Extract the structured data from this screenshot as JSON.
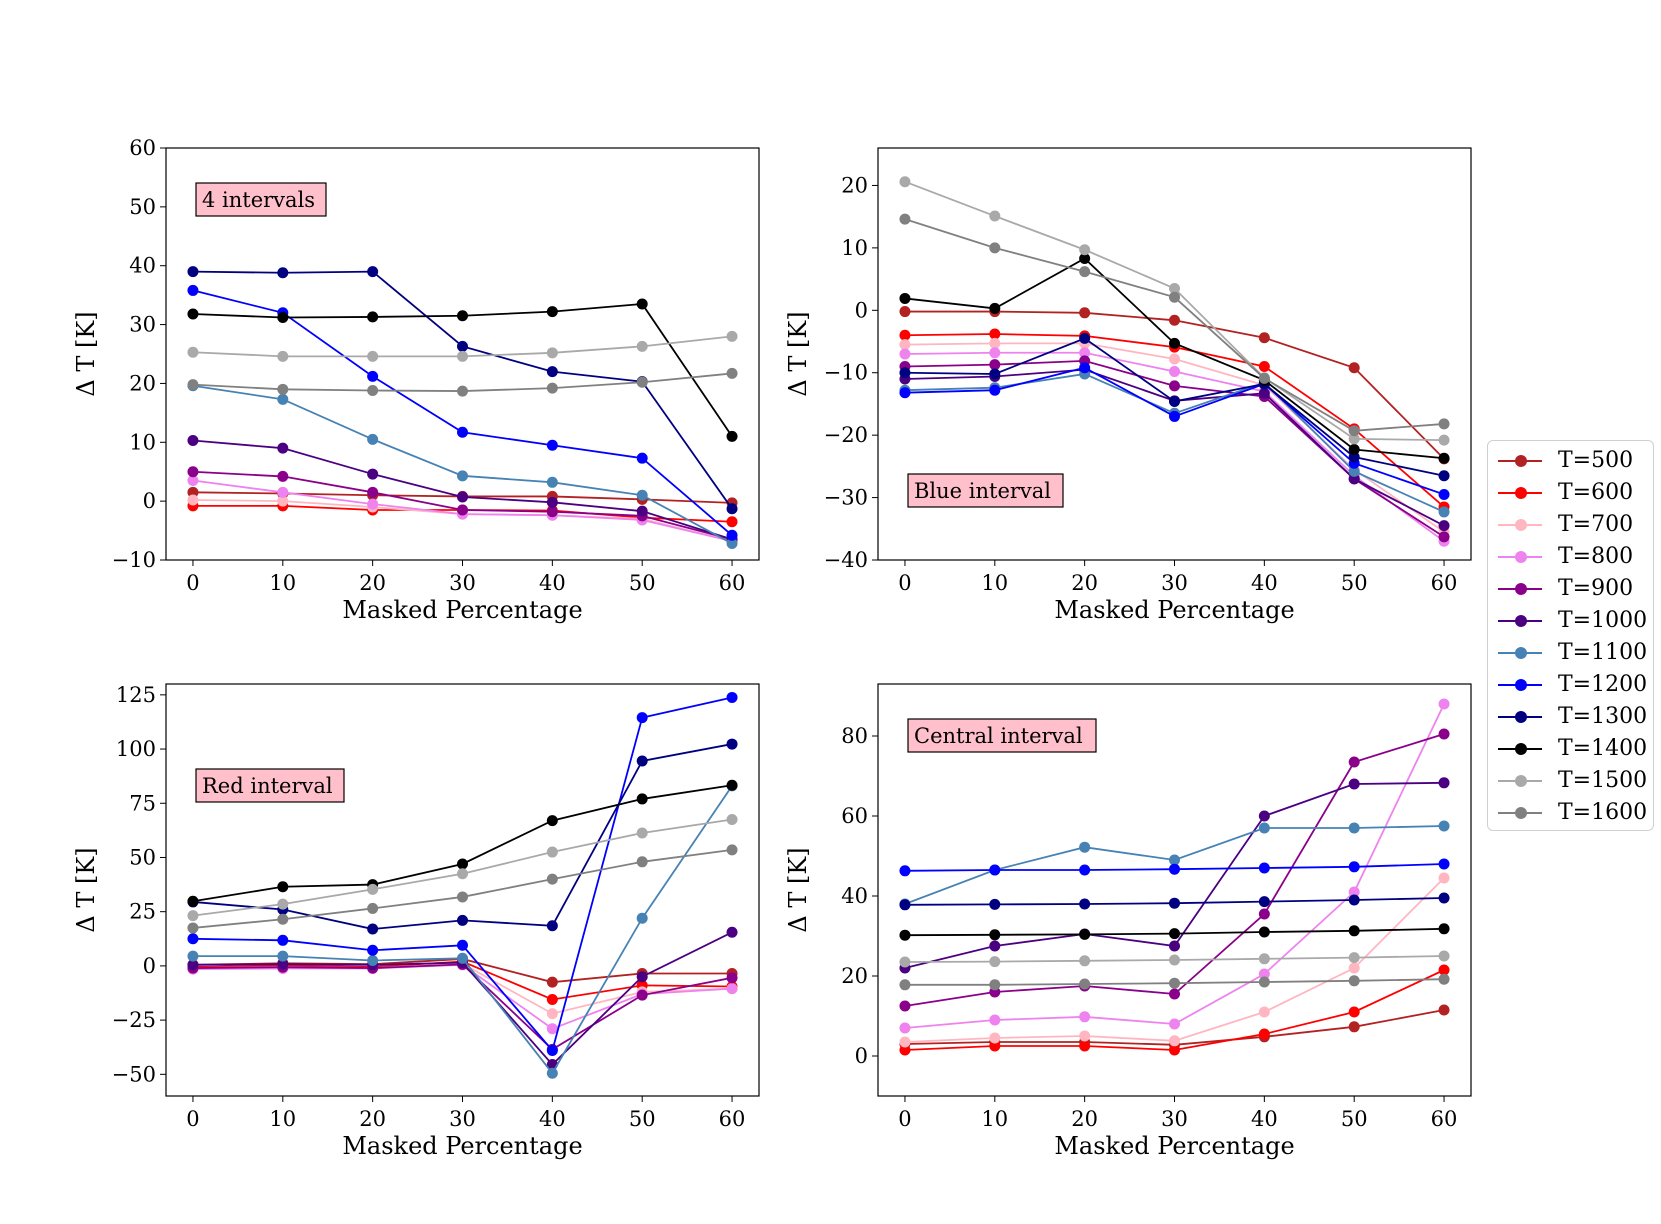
{
  "series_meta": [
    {
      "name": "T=500",
      "color": "#b22222"
    },
    {
      "name": "T=600",
      "color": "#ff0000"
    },
    {
      "name": "T=700",
      "color": "#ffb6c1"
    },
    {
      "name": "T=800",
      "color": "#ee82ee"
    },
    {
      "name": "T=900",
      "color": "#8b008b"
    },
    {
      "name": "T=1000",
      "color": "#4b0082"
    },
    {
      "name": "T=1100",
      "color": "#4682b4"
    },
    {
      "name": "T=1200",
      "color": "#0000ff"
    },
    {
      "name": "T=1300",
      "color": "#000080"
    },
    {
      "name": "T=1400",
      "color": "#000000"
    },
    {
      "name": "T=1500",
      "color": "#a9a9a9"
    },
    {
      "name": "T=1600",
      "color": "#808080"
    }
  ],
  "annotation_bg": "#ffc0cb",
  "chart_data": [
    {
      "type": "line",
      "title": "4 intervals",
      "xlabel": "Masked Percentage",
      "ylabel": "Δ T [K]",
      "x": [
        0,
        10,
        20,
        30,
        40,
        50,
        60
      ],
      "xticks": [
        0,
        10,
        20,
        30,
        40,
        50,
        60
      ],
      "xlim": [
        -3,
        63
      ],
      "ylim": [
        -10,
        60
      ],
      "yticks": [
        -10,
        0,
        10,
        20,
        30,
        40,
        50,
        60
      ],
      "ytick_labels": [
        "−10",
        "0",
        "10",
        "20",
        "30",
        "40",
        "50",
        "60"
      ],
      "series": [
        {
          "name": "T=500",
          "values": [
            1.5,
            1.3,
            1.0,
            0.8,
            0.8,
            0.3,
            -0.3
          ]
        },
        {
          "name": "T=600",
          "values": [
            -0.8,
            -0.8,
            -1.5,
            -1.5,
            -1.6,
            -2.8,
            -3.5
          ]
        },
        {
          "name": "T=700",
          "values": [
            0.2,
            0.0,
            -1.0,
            -2.2,
            -2.4,
            -3.0,
            -6.8
          ]
        },
        {
          "name": "T=800",
          "values": [
            3.5,
            1.5,
            -0.5,
            -2.2,
            -2.4,
            -3.2,
            -6.8
          ]
        },
        {
          "name": "T=900",
          "values": [
            5.0,
            4.2,
            1.5,
            -1.5,
            -1.8,
            -2.5,
            -6.5
          ]
        },
        {
          "name": "T=1000",
          "values": [
            10.3,
            9.0,
            4.6,
            0.7,
            -0.2,
            -1.7,
            -6.5
          ]
        },
        {
          "name": "T=1100",
          "values": [
            19.6,
            17.3,
            10.5,
            4.3,
            3.2,
            1.0,
            -7.2
          ]
        },
        {
          "name": "T=1200",
          "values": [
            35.8,
            32.0,
            21.2,
            11.7,
            9.5,
            7.3,
            -5.8
          ]
        },
        {
          "name": "T=1300",
          "values": [
            39.0,
            38.8,
            39.0,
            26.3,
            22.0,
            20.3,
            -1.3
          ]
        },
        {
          "name": "T=1400",
          "values": [
            31.8,
            31.2,
            31.3,
            31.5,
            32.2,
            33.5,
            11.0
          ]
        },
        {
          "name": "T=1500",
          "values": [
            25.3,
            24.6,
            24.6,
            24.6,
            25.2,
            26.3,
            28.0
          ]
        },
        {
          "name": "T=1600",
          "values": [
            19.8,
            19.0,
            18.8,
            18.7,
            19.2,
            20.2,
            21.7
          ]
        }
      ]
    },
    {
      "type": "line",
      "title": "Blue interval",
      "xlabel": "Masked Percentage",
      "ylabel": "Δ T [K]",
      "x": [
        0,
        10,
        20,
        30,
        40,
        50,
        60
      ],
      "xticks": [
        0,
        10,
        20,
        30,
        40,
        50,
        60
      ],
      "xlim": [
        -3,
        63
      ],
      "ylim": [
        -40,
        26
      ],
      "yticks": [
        -40,
        -30,
        -20,
        -10,
        0,
        10,
        20
      ],
      "ytick_labels": [
        "−40",
        "−30",
        "−20",
        "−10",
        "0",
        "10",
        "20"
      ],
      "series": [
        {
          "name": "T=500",
          "values": [
            -0.2,
            -0.2,
            -0.4,
            -1.6,
            -4.4,
            -9.2,
            -23.8
          ]
        },
        {
          "name": "T=600",
          "values": [
            -4.0,
            -3.8,
            -4.1,
            -5.9,
            -9.0,
            -19.0,
            -31.5
          ]
        },
        {
          "name": "T=700",
          "values": [
            -5.5,
            -5.3,
            -5.3,
            -7.8,
            -12.0,
            -25.5,
            -35.5
          ]
        },
        {
          "name": "T=800",
          "values": [
            -7.0,
            -6.8,
            -6.8,
            -9.8,
            -13.0,
            -26.5,
            -37.0
          ]
        },
        {
          "name": "T=900",
          "values": [
            -9.0,
            -8.7,
            -8.1,
            -12.1,
            -13.8,
            -27.0,
            -36.3
          ]
        },
        {
          "name": "T=1000",
          "values": [
            -11.0,
            -10.6,
            -9.5,
            -14.5,
            -13.3,
            -27.0,
            -34.5
          ]
        },
        {
          "name": "T=1100",
          "values": [
            -12.8,
            -12.4,
            -10.2,
            -16.5,
            -11.6,
            -25.8,
            -32.3
          ]
        },
        {
          "name": "T=1200",
          "values": [
            -13.2,
            -12.8,
            -9.2,
            -17.0,
            -11.8,
            -24.5,
            -29.5
          ]
        },
        {
          "name": "T=1300",
          "values": [
            -10.0,
            -10.2,
            -4.5,
            -14.6,
            -11.8,
            -23.5,
            -26.5
          ]
        },
        {
          "name": "T=1400",
          "values": [
            1.9,
            0.3,
            8.3,
            -5.3,
            -11.2,
            -22.3,
            -23.7
          ]
        },
        {
          "name": "T=1500",
          "values": [
            20.6,
            15.1,
            9.7,
            3.5,
            -10.8,
            -20.6,
            -20.8
          ]
        },
        {
          "name": "T=1600",
          "values": [
            14.6,
            10.0,
            6.2,
            2.1,
            -10.9,
            -19.3,
            -18.2
          ]
        }
      ]
    },
    {
      "type": "line",
      "title": "Red interval",
      "xlabel": "Masked Percentage",
      "ylabel": "Δ T [K]",
      "x": [
        0,
        10,
        20,
        30,
        40,
        50,
        60
      ],
      "xticks": [
        0,
        10,
        20,
        30,
        40,
        50,
        60
      ],
      "xlim": [
        -3,
        63
      ],
      "ylim": [
        -60,
        130
      ],
      "yticks": [
        -50,
        -25,
        0,
        25,
        50,
        75,
        100,
        125
      ],
      "ytick_labels": [
        "−50",
        "−25",
        "0",
        "25",
        "50",
        "75",
        "100",
        "125"
      ],
      "series": [
        {
          "name": "T=500",
          "values": [
            0.5,
            1.2,
            0.8,
            3.2,
            -7.5,
            -3.5,
            -3.5
          ]
        },
        {
          "name": "T=600",
          "values": [
            -0.5,
            0.2,
            -0.5,
            2.0,
            -15.5,
            -9.0,
            -9.5
          ]
        },
        {
          "name": "T=700",
          "values": [
            -1.0,
            -0.5,
            -1.0,
            1.0,
            -22.0,
            -12.0,
            -10.5
          ]
        },
        {
          "name": "T=800",
          "values": [
            -1.5,
            -1.2,
            -1.2,
            0.5,
            -29.0,
            -13.0,
            -10.5
          ]
        },
        {
          "name": "T=900",
          "values": [
            -1.0,
            -0.6,
            -1.0,
            0.7,
            -38.5,
            -13.5,
            -5.5
          ]
        },
        {
          "name": "T=1000",
          "values": [
            0.5,
            0.8,
            0.5,
            1.5,
            -45.5,
            -5.0,
            15.5
          ]
        },
        {
          "name": "T=1100",
          "values": [
            4.5,
            4.5,
            2.5,
            3.5,
            -49.5,
            22.0,
            83.0
          ]
        },
        {
          "name": "T=1200",
          "values": [
            12.5,
            11.8,
            7.2,
            9.5,
            -39.0,
            114.5,
            123.8
          ]
        },
        {
          "name": "T=1300",
          "values": [
            29.5,
            26.0,
            17.0,
            21.0,
            18.5,
            94.5,
            102.3
          ]
        },
        {
          "name": "T=1400",
          "values": [
            29.8,
            36.5,
            37.5,
            47.0,
            67.0,
            77.0,
            83.3
          ]
        },
        {
          "name": "T=1500",
          "values": [
            23.2,
            28.5,
            35.3,
            42.5,
            52.5,
            61.3,
            67.5
          ]
        },
        {
          "name": "T=1600",
          "values": [
            17.5,
            21.5,
            26.5,
            31.8,
            40.0,
            48.0,
            53.5
          ]
        }
      ]
    },
    {
      "type": "line",
      "title": "Central interval",
      "xlabel": "Masked Percentage",
      "ylabel": "Δ T [K]",
      "x": [
        0,
        10,
        20,
        30,
        40,
        50,
        60
      ],
      "xticks": [
        0,
        10,
        20,
        30,
        40,
        50,
        60
      ],
      "xlim": [
        -3,
        63
      ],
      "ylim": [
        -10,
        93
      ],
      "yticks": [
        0,
        20,
        40,
        60,
        80
      ],
      "ytick_labels": [
        "0",
        "20",
        "40",
        "60",
        "80"
      ],
      "series": [
        {
          "name": "T=500",
          "values": [
            3.0,
            3.5,
            3.5,
            2.8,
            4.8,
            7.3,
            11.5
          ]
        },
        {
          "name": "T=600",
          "values": [
            1.5,
            2.5,
            2.5,
            1.5,
            5.5,
            11.0,
            21.5
          ]
        },
        {
          "name": "T=700",
          "values": [
            3.5,
            4.5,
            5.0,
            3.8,
            11.0,
            22.0,
            44.5
          ]
        },
        {
          "name": "T=800",
          "values": [
            7.0,
            9.0,
            9.8,
            8.0,
            20.5,
            41.0,
            88.0
          ]
        },
        {
          "name": "T=900",
          "values": [
            12.5,
            16.0,
            17.5,
            15.5,
            35.5,
            73.5,
            80.5
          ]
        },
        {
          "name": "T=1000",
          "values": [
            22.0,
            27.5,
            30.5,
            27.5,
            60.0,
            68.0,
            68.3
          ]
        },
        {
          "name": "T=1100",
          "values": [
            38.0,
            46.5,
            52.2,
            49.0,
            57.0,
            57.0,
            57.5
          ]
        },
        {
          "name": "T=1200",
          "values": [
            46.3,
            46.5,
            46.5,
            46.7,
            47.0,
            47.3,
            48.0
          ]
        },
        {
          "name": "T=1300",
          "values": [
            37.8,
            37.9,
            38.0,
            38.2,
            38.6,
            39.0,
            39.5
          ]
        },
        {
          "name": "T=1400",
          "values": [
            30.2,
            30.3,
            30.4,
            30.6,
            31.0,
            31.3,
            31.8
          ]
        },
        {
          "name": "T=1500",
          "values": [
            23.5,
            23.6,
            23.8,
            24.0,
            24.3,
            24.6,
            25.0
          ]
        },
        {
          "name": "T=1600",
          "values": [
            17.8,
            17.8,
            18.0,
            18.2,
            18.5,
            18.8,
            19.2
          ]
        }
      ]
    }
  ]
}
